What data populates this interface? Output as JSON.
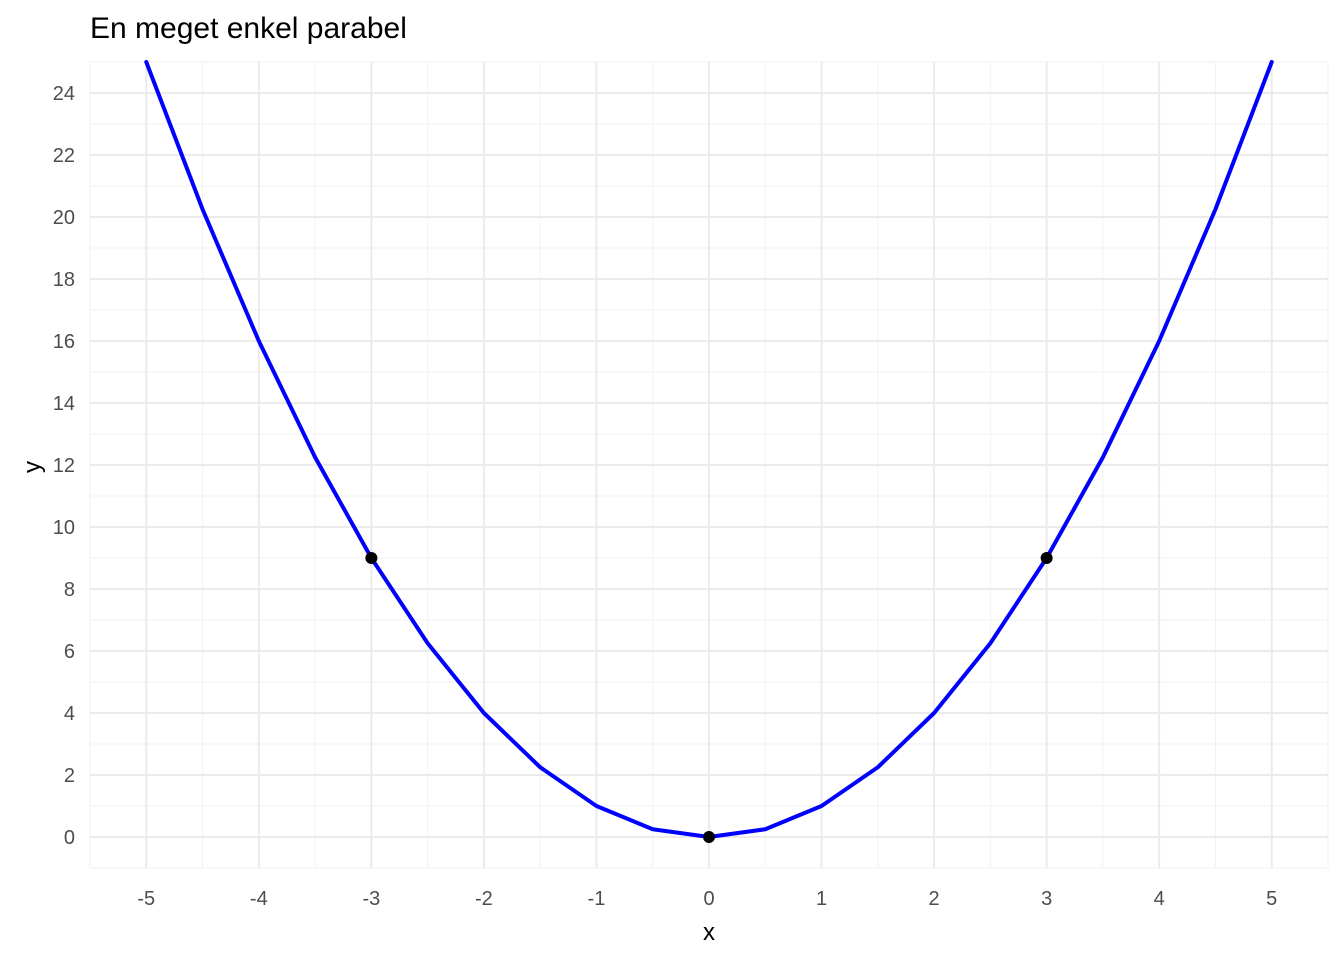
{
  "chart_data": {
    "type": "line",
    "title": "En meget enkel parabel",
    "xlabel": "x",
    "ylabel": "y",
    "xlim": [
      -5.5,
      5.5
    ],
    "ylim": [
      -1.0,
      25.0
    ],
    "x_ticks": [
      -5,
      -4,
      -3,
      -2,
      -1,
      0,
      1,
      2,
      3,
      4,
      5
    ],
    "y_ticks": [
      0,
      2,
      4,
      6,
      8,
      10,
      12,
      14,
      16,
      18,
      20,
      22,
      24
    ],
    "grid": true,
    "legend": "none",
    "series": [
      {
        "type": "line",
        "color": "#0000ff",
        "x": [
          -5,
          -4.5,
          -4,
          -3.5,
          -3,
          -2.5,
          -2,
          -1.5,
          -1,
          -0.5,
          0,
          0.5,
          1,
          1.5,
          2,
          2.5,
          3,
          3.5,
          4,
          4.5,
          5
        ],
        "y": [
          25,
          20.25,
          16,
          12.25,
          9,
          6.25,
          4,
          2.25,
          1,
          0.25,
          0,
          0.25,
          1,
          2.25,
          4,
          6.25,
          9,
          12.25,
          16,
          20.25,
          25
        ]
      },
      {
        "type": "scatter",
        "color": "#000000",
        "x": [
          -3,
          0,
          3
        ],
        "y": [
          9,
          0,
          9
        ]
      }
    ]
  }
}
